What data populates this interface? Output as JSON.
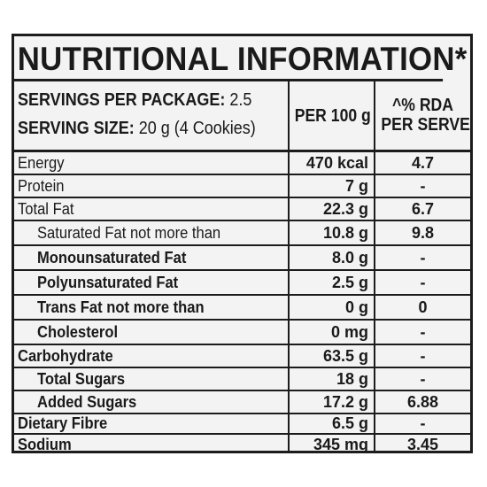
{
  "title": "NUTRITIONAL INFORMATION*",
  "header": {
    "servings_label": "SERVINGS PER PACKAGE:",
    "servings_value": "2.5",
    "size_label": "SERVING SIZE:",
    "size_value": "20 g (4 Cookies)",
    "col_per100": "PER 100 g",
    "col_rda_line1": "^% RDA",
    "col_rda_line2": "PER SERVE"
  },
  "rows": [
    {
      "label": "Energy",
      "value": "470 kcal",
      "rda": "4.7",
      "indent": 0,
      "bold": false
    },
    {
      "label": "Protein",
      "value": "7 g",
      "rda": "-",
      "indent": 0,
      "bold": false
    },
    {
      "label": "Total Fat",
      "value": "22.3 g",
      "rda": "6.7",
      "indent": 0,
      "bold": false
    },
    {
      "label": "Saturated Fat not more than",
      "value": "10.8 g",
      "rda": "9.8",
      "indent": 1,
      "bold": false
    },
    {
      "label": "Monounsaturated Fat",
      "value": "8.0 g",
      "rda": "-",
      "indent": 1,
      "bold": true
    },
    {
      "label": "Polyunsaturated Fat",
      "value": "2.5 g",
      "rda": "-",
      "indent": 1,
      "bold": true
    },
    {
      "label": "Trans Fat not more than",
      "value": "0 g",
      "rda": "0",
      "indent": 1,
      "bold": true
    },
    {
      "label": "Cholesterol",
      "value": "0 mg",
      "rda": "-",
      "indent": 1,
      "bold": true
    },
    {
      "label": "Carbohydrate",
      "value": "63.5 g",
      "rda": "-",
      "indent": 0,
      "bold": true
    },
    {
      "label": "Total Sugars",
      "value": "18 g",
      "rda": "-",
      "indent": 1,
      "bold": true
    },
    {
      "label": "Added Sugars",
      "value": "17.2 g",
      "rda": "6.88",
      "indent": 1,
      "bold": true
    },
    {
      "label": "Dietary Fibre",
      "value": "6.5 g",
      "rda": "-",
      "indent": 0,
      "bold": true
    },
    {
      "label": "Sodium",
      "value": "345 mg",
      "rda": "3.45",
      "indent": 0,
      "bold": true
    }
  ]
}
